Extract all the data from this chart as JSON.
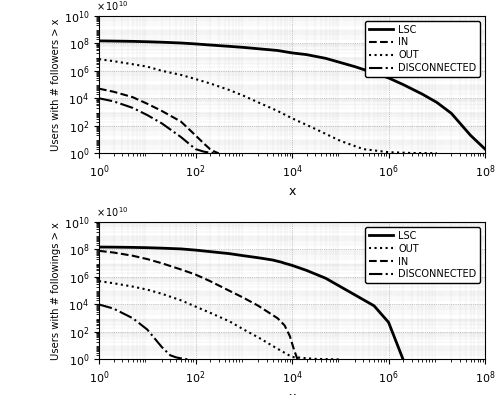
{
  "top": {
    "xlabel": "x",
    "ylabel": "Users with # followers > x",
    "xlim": [
      1.0,
      100000000.0
    ],
    "ylim": [
      1.0,
      10000000000.0
    ],
    "legend_order": [
      "LSC",
      "IN",
      "OUT",
      "DISCONNECTED"
    ],
    "curves": {
      "LSC": {
        "x": [
          1,
          2,
          5,
          10,
          20,
          50,
          100,
          200,
          500,
          1000,
          2000,
          5000,
          10000,
          20000,
          50000,
          100000,
          200000,
          500000,
          1000000,
          2000000,
          5000000,
          10000000,
          20000000,
          50000000,
          100000000
        ],
        "y": [
          150000000.0,
          145000000.0,
          138000000.0,
          130000000.0,
          120000000.0,
          105000000.0,
          90000000.0,
          75000000.0,
          60000000.0,
          50000000.0,
          40000000.0,
          30000000.0,
          20000000.0,
          15000000.0,
          8000000.0,
          4000000.0,
          2000000.0,
          700000.0,
          300000.0,
          100000.0,
          20000.0,
          5000,
          800,
          20,
          2
        ],
        "style": "solid",
        "lw": 2.0
      },
      "IN": {
        "x": [
          1,
          2,
          5,
          10,
          20,
          50,
          100,
          150,
          200,
          250,
          300
        ],
        "y": [
          50000.0,
          30000.0,
          12000.0,
          4000,
          1200,
          200,
          20,
          5,
          2,
          1.3,
          1
        ],
        "style": "dashed",
        "lw": 1.5
      },
      "OUT": {
        "x": [
          1,
          2,
          5,
          10,
          20,
          50,
          100,
          200,
          500,
          1000,
          2000,
          5000,
          10000,
          30000,
          100000,
          300000,
          1000000,
          3000000,
          10000000
        ],
        "y": [
          7000000.0,
          5000000.0,
          3000000.0,
          2000000.0,
          1000000.0,
          500000.0,
          250000.0,
          120000.0,
          40000.0,
          15000.0,
          5000.0,
          1200.0,
          350,
          60,
          8,
          2,
          1.2,
          1.05,
          1
        ],
        "style": "dotted",
        "lw": 1.5
      },
      "DISCONNECTED": {
        "x": [
          1,
          2,
          5,
          10,
          20,
          50,
          100,
          150,
          200,
          250,
          300
        ],
        "y": [
          10000.0,
          6000,
          2000,
          600,
          150,
          15,
          2,
          1.3,
          1.1,
          1.05,
          1
        ],
        "style": "dashdot",
        "lw": 1.5
      }
    }
  },
  "bottom": {
    "xlabel": "x",
    "ylabel": "Users with # followings > x",
    "xlim": [
      1.0,
      100000000.0
    ],
    "ylim": [
      1.0,
      10000000000.0
    ],
    "legend_order": [
      "LSC",
      "OUT",
      "IN",
      "DISCONNECTED"
    ],
    "curves": {
      "LSC": {
        "x": [
          1,
          2,
          5,
          10,
          20,
          50,
          100,
          200,
          500,
          1000,
          2000,
          3000,
          4000,
          5000,
          6000,
          7000,
          10000,
          20000,
          50000,
          100000,
          200000,
          500000,
          1000000,
          2000000
        ],
        "y": [
          150000000.0,
          148000000.0,
          142000000.0,
          135000000.0,
          125000000.0,
          110000000.0,
          90000000.0,
          70000000.0,
          50000000.0,
          35000000.0,
          25000000.0,
          20000000.0,
          17000000.0,
          14000000.0,
          12000000.0,
          10000000.0,
          7000000.0,
          3000000.0,
          800000.0,
          200000.0,
          50000.0,
          8000.0,
          500,
          1
        ],
        "style": "solid",
        "lw": 2.0
      },
      "OUT": {
        "x": [
          1,
          2,
          5,
          10,
          20,
          50,
          100,
          200,
          500,
          1000,
          2000,
          5000,
          10000,
          30000,
          100000
        ],
        "y": [
          500000.0,
          350000.0,
          200000.0,
          120000.0,
          60000.0,
          20000.0,
          7000,
          2500,
          600,
          150,
          40,
          6,
          1.5,
          1.1,
          1
        ],
        "style": "dotted",
        "lw": 1.5
      },
      "IN": {
        "x": [
          1,
          2,
          5,
          10,
          20,
          50,
          100,
          200,
          500,
          1000,
          2000,
          5000,
          7000,
          9000,
          11000,
          13000
        ],
        "y": [
          80000000.0,
          60000000.0,
          35000000.0,
          20000000.0,
          10000000.0,
          3500000.0,
          1500000.0,
          500000.0,
          100000.0,
          30000.0,
          8000,
          1000,
          300,
          50,
          5,
          1
        ],
        "style": "dashed",
        "lw": 1.5
      },
      "DISCONNECTED": {
        "x": [
          1,
          2,
          5,
          10,
          20,
          30,
          40,
          50,
          60,
          70
        ],
        "y": [
          10000.0,
          5000,
          1000,
          150,
          8,
          2,
          1.4,
          1.2,
          1.1,
          1
        ],
        "style": "dashdot",
        "lw": 1.5
      }
    }
  }
}
